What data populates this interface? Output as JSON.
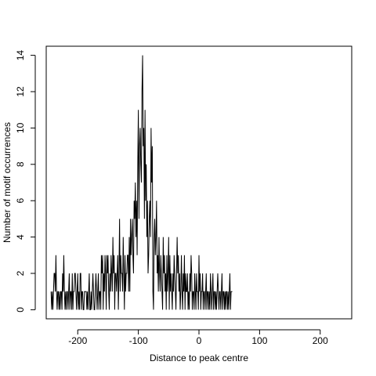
{
  "chart_data": {
    "type": "line",
    "title": "",
    "xlabel": "Distance to peak centre",
    "ylabel": "Number of motif occurrences",
    "xlim": [
      -252,
      252
    ],
    "ylim": [
      -0.5,
      14.5
    ],
    "x_ticks": [
      -200,
      -100,
      0,
      100,
      200
    ],
    "y_ticks": [
      0,
      2,
      4,
      6,
      8,
      10,
      12,
      14
    ],
    "x_tick_labels": [
      "-200",
      "-100",
      "0",
      "100",
      "200"
    ],
    "y_tick_labels": [
      "0",
      "2",
      "4",
      "6",
      "8",
      "10",
      "12",
      "14"
    ],
    "grid": false,
    "legend": "none",
    "line_color": "#000000",
    "x_start": -244,
    "x_step": 1,
    "values": [
      1,
      0,
      1,
      0,
      1,
      2,
      2,
      1,
      3,
      1,
      0,
      1,
      1,
      0,
      1,
      0,
      1,
      1,
      0,
      2,
      1,
      3,
      1,
      0,
      1,
      0,
      1,
      1,
      0,
      1,
      2,
      0,
      1,
      1,
      0,
      2,
      0,
      1,
      1,
      2,
      2,
      1,
      0,
      1,
      2,
      0,
      1,
      0,
      2,
      2,
      0,
      1,
      1,
      0,
      0,
      1,
      1,
      1,
      1,
      0,
      1,
      0,
      1,
      2,
      0,
      0,
      1,
      0,
      1,
      2,
      1,
      0,
      0,
      1,
      2,
      1,
      0,
      1,
      2,
      0,
      1,
      1,
      0,
      3,
      2,
      3,
      0,
      2,
      1,
      3,
      2,
      0,
      3,
      2,
      3,
      1,
      0,
      2,
      1,
      3,
      2,
      1,
      4,
      2,
      3,
      0,
      2,
      2,
      1,
      2,
      3,
      0,
      2,
      5,
      1,
      3,
      2,
      2,
      1,
      4,
      2,
      0,
      3,
      1,
      2,
      2,
      3,
      3,
      1,
      4,
      1,
      5,
      3,
      4,
      5,
      3,
      2,
      6,
      5,
      7,
      4,
      6,
      3,
      8,
      11,
      5,
      9,
      10,
      8,
      7,
      12,
      14,
      9,
      10,
      5,
      11,
      6,
      8,
      4,
      6,
      2,
      3,
      5,
      6,
      4,
      10,
      7,
      9,
      1,
      0,
      4,
      5,
      3,
      4,
      6,
      2,
      3,
      1,
      4,
      2,
      1,
      3,
      2,
      1,
      0,
      4,
      2,
      3,
      1,
      2,
      0,
      3,
      1,
      2,
      4,
      0,
      3,
      1,
      2,
      1,
      0,
      2,
      1,
      3,
      2,
      1,
      0,
      2,
      4,
      2,
      3,
      1,
      2,
      0,
      1,
      3,
      1,
      0,
      2,
      1,
      3,
      0,
      2,
      1,
      1,
      2,
      0,
      1,
      0,
      2,
      1,
      3,
      2,
      0,
      1,
      1,
      0,
      2,
      1,
      0,
      2,
      1,
      1,
      0,
      3,
      1,
      2,
      0,
      1,
      1,
      2,
      0,
      1,
      1,
      0,
      1,
      2,
      0,
      1,
      1,
      0,
      1,
      0,
      2,
      1,
      0,
      1,
      2,
      0,
      1,
      1,
      0,
      1,
      0,
      1,
      2,
      1,
      0,
      1,
      1,
      0,
      1,
      2,
      0,
      1,
      1,
      0,
      1,
      0,
      1,
      1,
      0,
      1,
      0,
      1,
      2,
      0,
      1,
      1,
      1
    ]
  }
}
